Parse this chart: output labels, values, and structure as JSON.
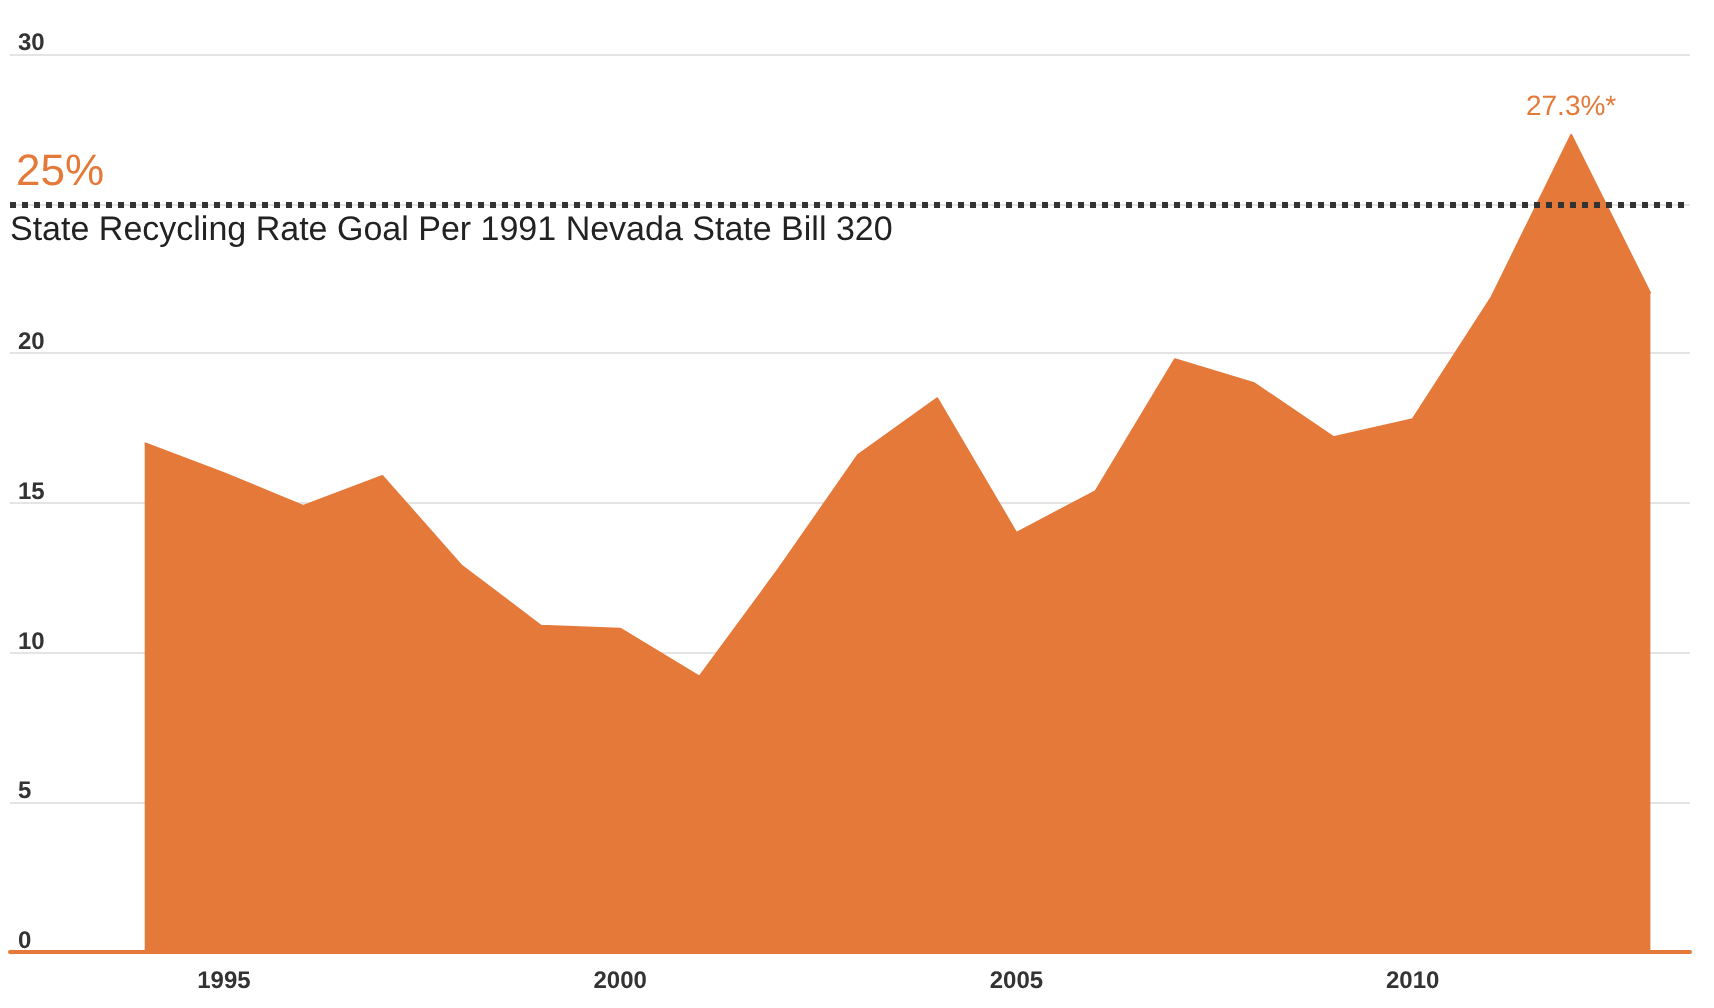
{
  "chart_data": {
    "type": "area",
    "x": [
      1994,
      1995,
      1996,
      1997,
      1998,
      1999,
      2000,
      2001,
      2002,
      2003,
      2004,
      2005,
      2006,
      2007,
      2008,
      2009,
      2010,
      2011,
      2012,
      2013
    ],
    "series": [
      {
        "color": "#e5793a",
        "values": [
          17.0,
          16.0,
          14.9,
          15.9,
          12.9,
          10.9,
          10.8,
          9.2,
          12.8,
          16.6,
          18.5,
          14.0,
          15.4,
          19.8,
          19.0,
          17.2,
          17.8,
          21.9,
          27.3,
          22.0
        ]
      }
    ],
    "xlim": [
      1992.3,
      2013.5
    ],
    "xticks": [
      1995,
      2000,
      2005,
      2010
    ],
    "ylim": [
      0,
      30
    ],
    "yticks": [
      0,
      5,
      10,
      15,
      20,
      {
        "value": 25,
        "label": null
      },
      30
    ],
    "grid": "y",
    "ref_lines": [
      {
        "axis": "y",
        "value": 25,
        "label": "State Recycling Rate Goal Per 1991 Nevada State Bill 320",
        "color": "#333333",
        "line_style": "dotted"
      }
    ],
    "annotations": [
      {
        "text": "25%",
        "y": 25
      },
      {
        "text": "27.3%*",
        "x": 2012,
        "y": 27.3
      }
    ]
  }
}
